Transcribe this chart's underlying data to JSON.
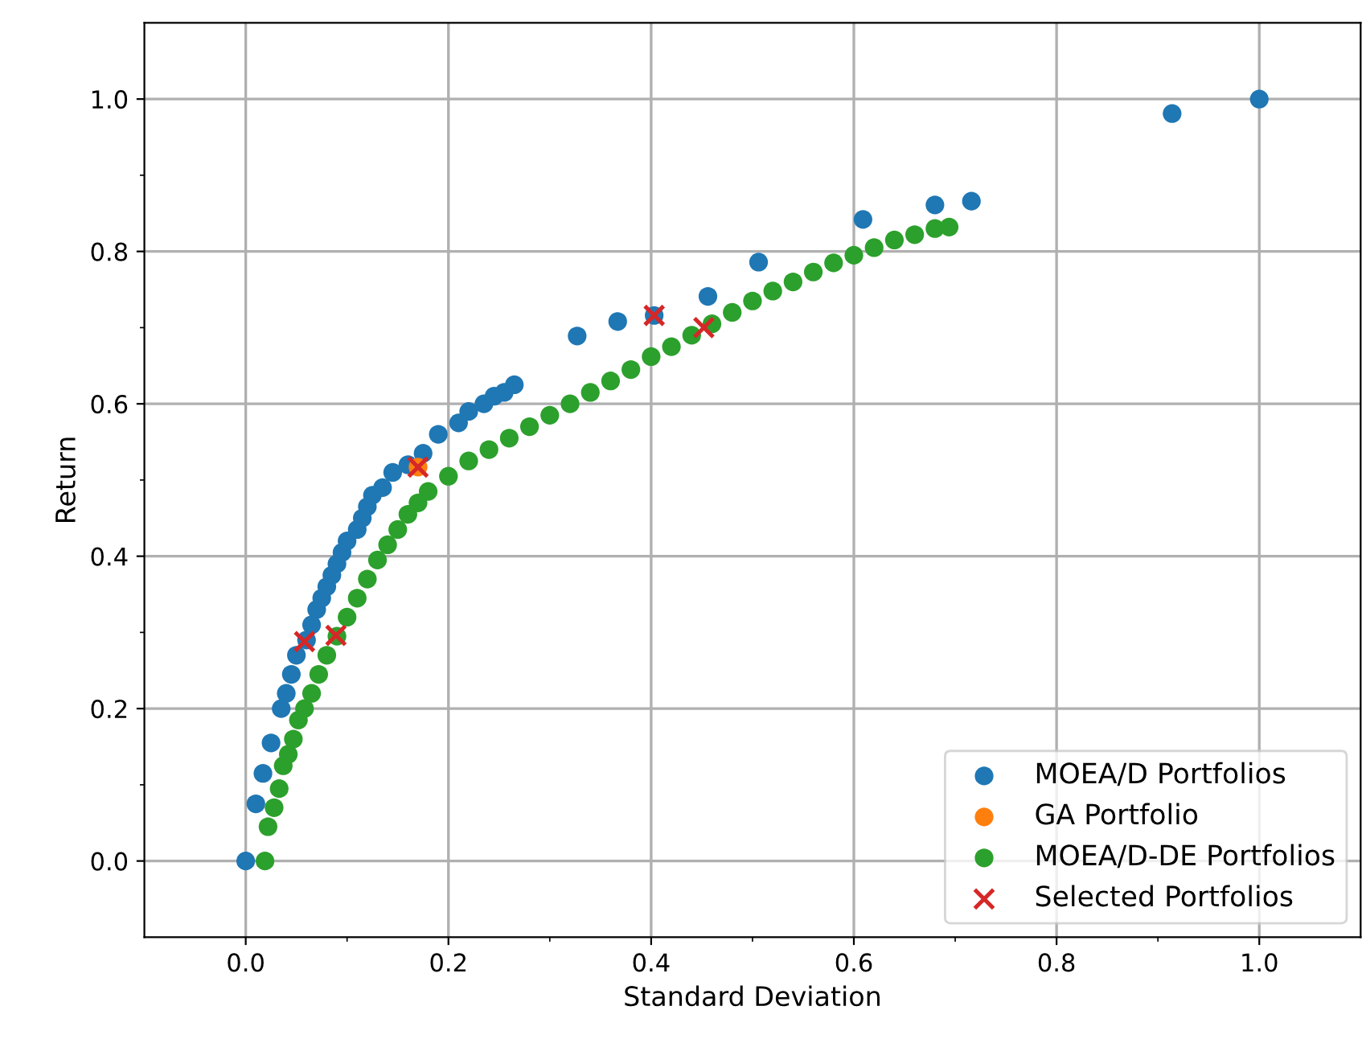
{
  "chart_data": {
    "type": "scatter",
    "xlabel": "Standard Deviation",
    "ylabel": "Return",
    "xlim": [
      -0.1,
      1.1
    ],
    "ylim": [
      -0.1,
      1.1
    ],
    "xticks": [
      {
        "value": 0,
        "label": "0.0"
      },
      {
        "value": 0.1,
        "label": null
      },
      {
        "value": 0.2,
        "label": "0.2"
      },
      {
        "value": 0.3,
        "label": null
      },
      {
        "value": 0.4,
        "label": "0.4"
      },
      {
        "value": 0.5,
        "label": null
      },
      {
        "value": 0.6,
        "label": "0.6"
      },
      {
        "value": 0.7,
        "label": null
      },
      {
        "value": 0.8,
        "label": "0.8"
      },
      {
        "value": 0.9,
        "label": null
      },
      {
        "value": 1.0,
        "label": "1.0"
      }
    ],
    "yticks": [
      {
        "value": 0,
        "label": "0.0"
      },
      {
        "value": 0.1,
        "label": null
      },
      {
        "value": 0.2,
        "label": "0.2"
      },
      {
        "value": 0.3,
        "label": null
      },
      {
        "value": 0.4,
        "label": "0.4"
      },
      {
        "value": 0.5,
        "label": null
      },
      {
        "value": 0.6,
        "label": "0.6"
      },
      {
        "value": 0.7,
        "label": null
      },
      {
        "value": 0.8,
        "label": "0.8"
      },
      {
        "value": 0.9,
        "label": null
      },
      {
        "value": 1.0,
        "label": "1.0"
      }
    ],
    "grid": true,
    "legend": "bottom right",
    "series": [
      {
        "name": "MOEA/D Portfolios",
        "color": "#1f77b4",
        "marker": "circle",
        "x": [
          0,
          0.01,
          0.017,
          0.025,
          0.035,
          0.04,
          0.045,
          0.05,
          0.06,
          0.065,
          0.07,
          0.075,
          0.08,
          0.085,
          0.09,
          0.095,
          0.1,
          0.11,
          0.115,
          0.12,
          0.125,
          0.135,
          0.145,
          0.16,
          0.175,
          0.19,
          0.21,
          0.22,
          0.235,
          0.245,
          0.255,
          0.265,
          0.327,
          0.367,
          0.403,
          0.456,
          0.506,
          0.609,
          0.68,
          0.716,
          0.914,
          1.0
        ],
        "values": [
          0,
          0.075,
          0.115,
          0.155,
          0.2,
          0.22,
          0.245,
          0.27,
          0.29,
          0.31,
          0.33,
          0.345,
          0.36,
          0.375,
          0.39,
          0.405,
          0.42,
          0.435,
          0.45,
          0.465,
          0.48,
          0.49,
          0.51,
          0.52,
          0.535,
          0.56,
          0.575,
          0.59,
          0.6,
          0.61,
          0.615,
          0.625,
          0.689,
          0.708,
          0.716,
          0.741,
          0.786,
          0.842,
          0.861,
          0.866,
          0.981,
          1.0
        ]
      },
      {
        "name": "GA Portfolio",
        "color": "#ff7f0e",
        "marker": "circle",
        "x": [
          0.17
        ],
        "values": [
          0.517
        ]
      },
      {
        "name": "MOEA/D-DE Portfolios",
        "color": "#2ca02c",
        "marker": "circle",
        "x": [
          0.019,
          0.022,
          0.028,
          0.033,
          0.037,
          0.042,
          0.047,
          0.052,
          0.058,
          0.065,
          0.072,
          0.08,
          0.09,
          0.1,
          0.11,
          0.12,
          0.13,
          0.14,
          0.15,
          0.16,
          0.17,
          0.18,
          0.2,
          0.22,
          0.24,
          0.26,
          0.28,
          0.3,
          0.32,
          0.34,
          0.36,
          0.38,
          0.4,
          0.42,
          0.44,
          0.46,
          0.48,
          0.5,
          0.52,
          0.54,
          0.56,
          0.58,
          0.6,
          0.62,
          0.64,
          0.66,
          0.68,
          0.694
        ],
        "values": [
          0,
          0.045,
          0.07,
          0.095,
          0.125,
          0.14,
          0.16,
          0.185,
          0.2,
          0.22,
          0.245,
          0.27,
          0.295,
          0.32,
          0.345,
          0.37,
          0.395,
          0.415,
          0.435,
          0.455,
          0.47,
          0.485,
          0.505,
          0.525,
          0.54,
          0.555,
          0.57,
          0.585,
          0.6,
          0.615,
          0.63,
          0.645,
          0.662,
          0.675,
          0.69,
          0.705,
          0.72,
          0.735,
          0.748,
          0.76,
          0.773,
          0.785,
          0.795,
          0.805,
          0.815,
          0.822,
          0.83,
          0.832
        ]
      },
      {
        "name": "Selected Portfolios",
        "color": "#d62728",
        "marker": "cross",
        "x": [
          0.058,
          0.089,
          0.17,
          0.403,
          0.452
        ],
        "values": [
          0.288,
          0.296,
          0.517,
          0.716,
          0.7
        ]
      }
    ]
  }
}
